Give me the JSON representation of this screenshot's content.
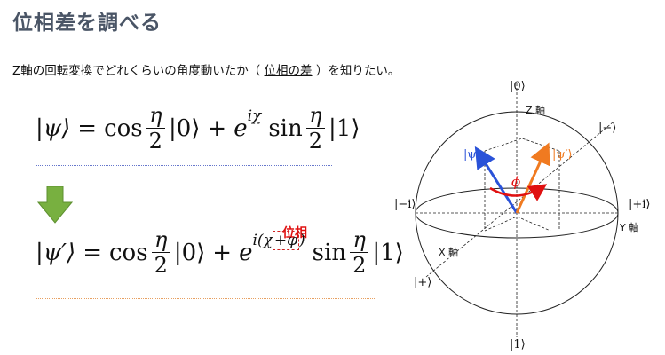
{
  "title": "位相差を調べる",
  "subtitle": {
    "before": "Z軸の回転変換でどれくらいの角度動いたか（ ",
    "underlined": "位相の差",
    "after": " ）を知りたい。"
  },
  "equation1": {
    "lhs": "|ψ⟩",
    "eq": "=",
    "cos": "cos",
    "num": "η",
    "den": "2",
    "ket0": "|0⟩",
    "plus": "+",
    "e": "e",
    "exp": "iχ",
    "sin": "sin",
    "ket1": "|1⟩"
  },
  "equation2": {
    "lhs": "|ψ′⟩",
    "eq": "=",
    "cos": "cos",
    "num": "η",
    "den": "2",
    "ket0": "|0⟩",
    "plus": "+",
    "e": "e",
    "exp_i": "i(",
    "exp_chi": "χ",
    "exp_boxed": "+φ",
    "exp_close": ")",
    "sin": "sin",
    "ket1": "|1⟩"
  },
  "phase_label": "位相",
  "colors": {
    "psi": "#2a52d8",
    "psi_prime": "#f07a20",
    "phi": "#e01010",
    "arrow": "#78b040"
  },
  "bloch": {
    "ket0": "|0⟩",
    "ket1": "|1⟩",
    "z_axis": "Z 軸",
    "x_axis": "X 軸",
    "y_axis": "Y 軸",
    "ket_minus": "|−⟩",
    "ket_plus": "|+⟩",
    "ket_plus_i": "|+i⟩",
    "ket_minus_i": "|−i⟩",
    "psi": "|ψ⟩",
    "psi_prime": "|ψ′⟩",
    "phi": "ϕ"
  }
}
